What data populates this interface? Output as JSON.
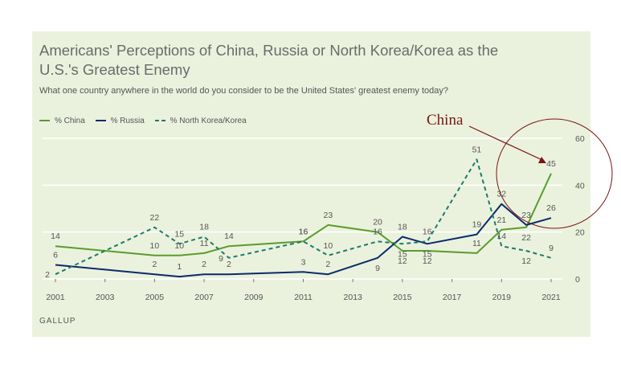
{
  "title": "Americans' Perceptions of China, Russia or North Korea/Korea as the U.S.'s Greatest Enemy",
  "subtitle": "What one country anywhere in the world do you consider to be the United States' greatest enemy today?",
  "source": "GALLUP",
  "annotation": {
    "label": "China",
    "color": "#7a1414"
  },
  "legend": {
    "china": "% China",
    "russia": "% Russia",
    "nk": "% North Korea/Korea"
  },
  "colors": {
    "china": "#5a9c2e",
    "russia": "#0c2a6b",
    "nk": "#1e7a6a",
    "background": "#eaf2dd",
    "grid": "#ffffff",
    "axis_text": "#555555"
  },
  "chart_data": {
    "type": "line",
    "xlim": [
      2001,
      2021
    ],
    "ylim": [
      0,
      60
    ],
    "x_ticks": [
      2001,
      2003,
      2005,
      2007,
      2009,
      2011,
      2013,
      2015,
      2017,
      2019,
      2021
    ],
    "y_ticks": [
      0,
      20,
      40,
      60
    ],
    "grid": true,
    "legend_position": "top-left",
    "series": [
      {
        "key": "china",
        "name": "% China",
        "style": "solid",
        "x": [
          2001,
          2005,
          2006,
          2007,
          2008,
          2011,
          2012,
          2014,
          2015,
          2016,
          2018,
          2019,
          2020,
          2021
        ],
        "values": [
          14,
          10,
          10,
          11,
          14,
          16,
          23,
          20,
          12,
          12,
          11,
          21,
          22,
          45
        ]
      },
      {
        "key": "russia",
        "name": "% Russia",
        "style": "solid",
        "x": [
          2001,
          2005,
          2006,
          2007,
          2008,
          2011,
          2012,
          2014,
          2015,
          2016,
          2018,
          2019,
          2020,
          2021
        ],
        "values": [
          6,
          2,
          1,
          2,
          2,
          3,
          2,
          9,
          18,
          15,
          19,
          32,
          23,
          26
        ]
      },
      {
        "key": "nk",
        "name": "% North Korea/Korea",
        "style": "dashed",
        "x": [
          2001,
          2005,
          2006,
          2007,
          2008,
          2011,
          2012,
          2014,
          2015,
          2016,
          2018,
          2019,
          2020,
          2021
        ],
        "values": [
          2,
          22,
          15,
          18,
          9,
          16,
          10,
          16,
          15,
          16,
          51,
          14,
          12,
          9
        ]
      }
    ],
    "value_labels": [
      {
        "series": "china",
        "x": 2001,
        "text": "14",
        "pos": "above"
      },
      {
        "series": "china",
        "x": 2005,
        "text": "10",
        "pos": "above"
      },
      {
        "series": "china",
        "x": 2006,
        "text": "10",
        "pos": "above"
      },
      {
        "series": "china",
        "x": 2007,
        "text": "11",
        "pos": "above"
      },
      {
        "series": "china",
        "x": 2008,
        "text": "14",
        "pos": "above"
      },
      {
        "series": "china",
        "x": 2011,
        "text": "16",
        "pos": "above"
      },
      {
        "series": "china",
        "x": 2012,
        "text": "23",
        "pos": "above"
      },
      {
        "series": "china",
        "x": 2014,
        "text": "20",
        "pos": "above"
      },
      {
        "series": "china",
        "x": 2015,
        "text": "12",
        "pos": "below"
      },
      {
        "series": "china",
        "x": 2016,
        "text": "12",
        "pos": "below"
      },
      {
        "series": "china",
        "x": 2018,
        "text": "11",
        "pos": "above"
      },
      {
        "series": "china",
        "x": 2019,
        "text": "21",
        "pos": "above"
      },
      {
        "series": "china",
        "x": 2020,
        "text": "22",
        "pos": "below"
      },
      {
        "series": "china",
        "x": 2021,
        "text": "45",
        "pos": "above"
      },
      {
        "series": "russia",
        "x": 2001,
        "text": "6",
        "pos": "above"
      },
      {
        "series": "russia",
        "x": 2005,
        "text": "2",
        "pos": "above"
      },
      {
        "series": "russia",
        "x": 2006,
        "text": "1",
        "pos": "above"
      },
      {
        "series": "russia",
        "x": 2007,
        "text": "2",
        "pos": "above"
      },
      {
        "series": "russia",
        "x": 2008,
        "text": "2",
        "pos": "above"
      },
      {
        "series": "russia",
        "x": 2011,
        "text": "3",
        "pos": "above"
      },
      {
        "series": "russia",
        "x": 2012,
        "text": "2",
        "pos": "above"
      },
      {
        "series": "russia",
        "x": 2014,
        "text": "9",
        "pos": "below"
      },
      {
        "series": "russia",
        "x": 2015,
        "text": "18",
        "pos": "above"
      },
      {
        "series": "russia",
        "x": 2016,
        "text": "15",
        "pos": "below"
      },
      {
        "series": "russia",
        "x": 2018,
        "text": "19",
        "pos": "above"
      },
      {
        "series": "russia",
        "x": 2019,
        "text": "32",
        "pos": "above"
      },
      {
        "series": "russia",
        "x": 2020,
        "text": "23",
        "pos": "above"
      },
      {
        "series": "russia",
        "x": 2021,
        "text": "26",
        "pos": "above"
      },
      {
        "series": "nk",
        "x": 2001,
        "text": "2",
        "pos": "left"
      },
      {
        "series": "nk",
        "x": 2005,
        "text": "22",
        "pos": "above"
      },
      {
        "series": "nk",
        "x": 2006,
        "text": "15",
        "pos": "above"
      },
      {
        "series": "nk",
        "x": 2007,
        "text": "18",
        "pos": "above"
      },
      {
        "series": "nk",
        "x": 2008,
        "text": "9",
        "pos": "left"
      },
      {
        "series": "nk",
        "x": 2011,
        "text": "16",
        "pos": "above"
      },
      {
        "series": "nk",
        "x": 2012,
        "text": "10",
        "pos": "above"
      },
      {
        "series": "nk",
        "x": 2014,
        "text": "16",
        "pos": "above"
      },
      {
        "series": "nk",
        "x": 2015,
        "text": "15",
        "pos": "below"
      },
      {
        "series": "nk",
        "x": 2016,
        "text": "16",
        "pos": "above"
      },
      {
        "series": "nk",
        "x": 2018,
        "text": "51",
        "pos": "above"
      },
      {
        "series": "nk",
        "x": 2019,
        "text": "14",
        "pos": "above"
      },
      {
        "series": "nk",
        "x": 2020,
        "text": "12",
        "pos": "below"
      },
      {
        "series": "nk",
        "x": 2021,
        "text": "9",
        "pos": "above"
      }
    ]
  }
}
